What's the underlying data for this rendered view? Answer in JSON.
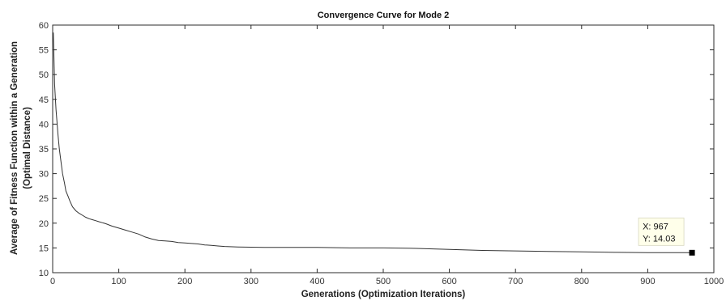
{
  "chart_data": {
    "type": "line",
    "title": "Convergence Curve for Mode 2",
    "xlabel": "Generations (Optimization Iterations)",
    "ylabel_line1": "Average of Fitness Function within a Generation",
    "ylabel_line2": "(Optimal Distance)",
    "xlim": [
      0,
      1000
    ],
    "ylim": [
      10,
      60
    ],
    "xticks": [
      0,
      100,
      200,
      300,
      400,
      500,
      600,
      700,
      800,
      900,
      1000
    ],
    "yticks": [
      10,
      15,
      20,
      25,
      30,
      35,
      40,
      45,
      50,
      55,
      60
    ],
    "grid": false,
    "color": "#333333",
    "series": [
      {
        "x": [
          1,
          3,
          5,
          8,
          10,
          13,
          15,
          18,
          20,
          23,
          26,
          30,
          35,
          40,
          45,
          50,
          55,
          60,
          65,
          70,
          75,
          80,
          90,
          100,
          110,
          120,
          130,
          140,
          150,
          160,
          170,
          180,
          190,
          200,
          210,
          220,
          230,
          240,
          250,
          260,
          280,
          300,
          320,
          350,
          400,
          450,
          500,
          550,
          600,
          620,
          650,
          700,
          750,
          800,
          850,
          900,
          950,
          967
        ],
        "y": [
          58.5,
          48,
          43,
          38,
          35,
          32,
          30,
          28,
          26.5,
          25.5,
          24.5,
          23.3,
          22.5,
          22.0,
          21.6,
          21.2,
          20.9,
          20.7,
          20.5,
          20.3,
          20.1,
          19.9,
          19.4,
          19.0,
          18.6,
          18.2,
          17.8,
          17.2,
          16.8,
          16.5,
          16.4,
          16.3,
          16.1,
          16.0,
          15.9,
          15.8,
          15.6,
          15.5,
          15.4,
          15.3,
          15.2,
          15.15,
          15.1,
          15.1,
          15.1,
          15.0,
          15.0,
          14.9,
          14.7,
          14.6,
          14.5,
          14.4,
          14.3,
          14.2,
          14.1,
          14.05,
          14.03,
          14.03
        ]
      }
    ],
    "datatip": {
      "x": 967,
      "y": 14.03,
      "label_x": "X: 967",
      "label_y": "Y: 14.03"
    }
  }
}
